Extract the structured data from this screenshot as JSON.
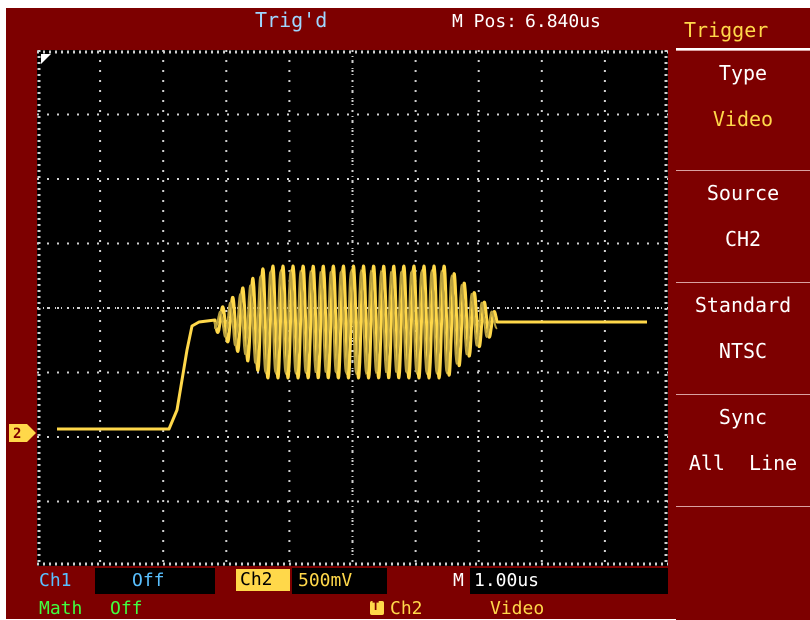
{
  "header": {
    "trigger_status": "Trig'd",
    "mpos_label": "M Pos:",
    "mpos_value": "6.840us"
  },
  "menu": {
    "title": "Trigger",
    "items": [
      {
        "label": "Type",
        "value": "Video"
      },
      {
        "label": "Source",
        "value": "CH2"
      },
      {
        "label": "Standard",
        "value": "NTSC"
      },
      {
        "label": "Sync",
        "value": "All  Line"
      },
      {
        "label": "",
        "value": ""
      }
    ]
  },
  "status": {
    "ch1_label": "Ch1",
    "ch1_value": "Off",
    "ch2_label": "Ch2",
    "ch2_value": "500mV",
    "timebase_label": "M",
    "timebase_value": "1.00us",
    "math_label": "Math",
    "math_value": "Off",
    "trigger_icon": "T",
    "trigger_source": "Ch2",
    "trigger_mode": "Video"
  },
  "markers": {
    "ch2_ground": "2"
  },
  "colors": {
    "frame": "#7d0000",
    "screen": "#000000",
    "trace": "#ffd84a",
    "grid": "#d0d0d0",
    "ch1": "#59c0ff",
    "math": "#40ff40",
    "trig_status": "#9fd7ff"
  }
}
